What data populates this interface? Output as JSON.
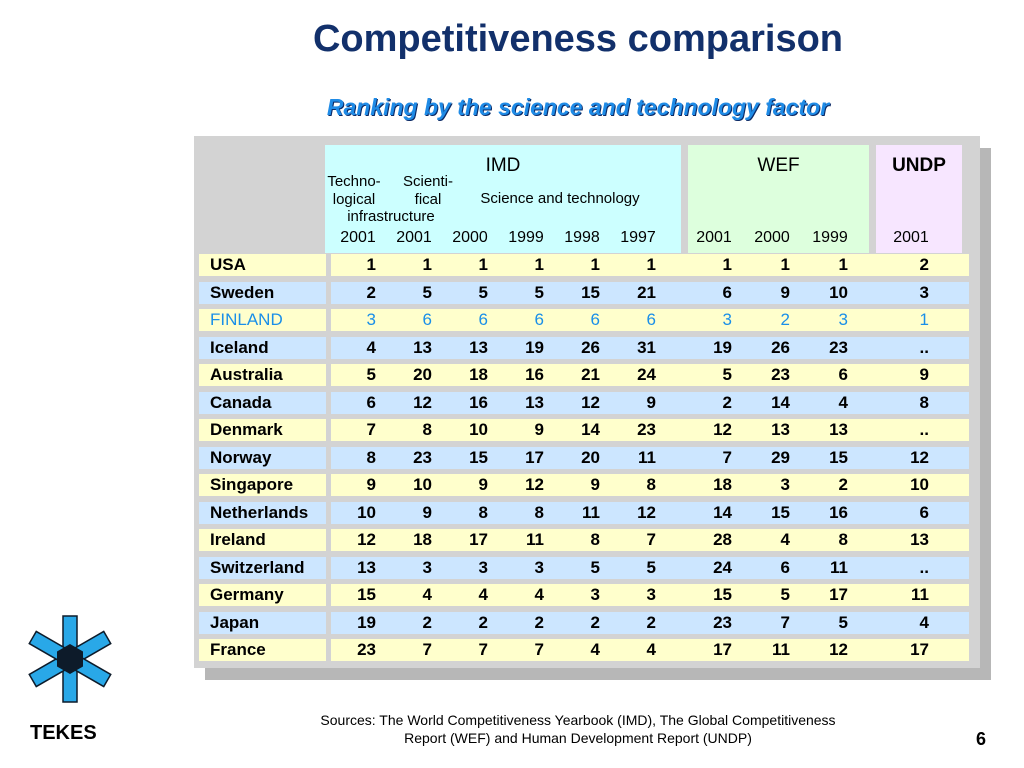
{
  "title": "Competitiveness comparison",
  "subtitle": "Ranking by the science and technology factor",
  "groups": {
    "imd": "IMD",
    "wef": "WEF",
    "undp": "UNDP"
  },
  "subheaders": {
    "techno": "Techno-\nlogical",
    "scienti": "Scienti-\nfical",
    "infra": "infrastructure",
    "scitech": "Science and technology"
  },
  "years": [
    "2001",
    "2001",
    "2000",
    "1999",
    "1998",
    "1997",
    "2001",
    "2000",
    "1999",
    "2001"
  ],
  "rows": [
    {
      "name": "USA",
      "values": [
        "1",
        "1",
        "1",
        "1",
        "1",
        "1",
        "1",
        "1",
        "1",
        "2"
      ]
    },
    {
      "name": "Sweden",
      "values": [
        "2",
        "5",
        "5",
        "5",
        "15",
        "21",
        "6",
        "9",
        "10",
        "3"
      ]
    },
    {
      "name": "FINLAND",
      "values": [
        "3",
        "6",
        "6",
        "6",
        "6",
        "6",
        "3",
        "2",
        "3",
        "1"
      ],
      "highlight": true
    },
    {
      "name": "Iceland",
      "values": [
        "4",
        "13",
        "13",
        "19",
        "26",
        "31",
        "19",
        "26",
        "23",
        ".."
      ]
    },
    {
      "name": "Australia",
      "values": [
        "5",
        "20",
        "18",
        "16",
        "21",
        "24",
        "5",
        "23",
        "6",
        "9"
      ]
    },
    {
      "name": "Canada",
      "values": [
        "6",
        "12",
        "16",
        "13",
        "12",
        "9",
        "2",
        "14",
        "4",
        "8"
      ]
    },
    {
      "name": "Denmark",
      "values": [
        "7",
        "8",
        "10",
        "9",
        "14",
        "23",
        "12",
        "13",
        "13",
        ".."
      ]
    },
    {
      "name": "Norway",
      "values": [
        "8",
        "23",
        "15",
        "17",
        "20",
        "11",
        "7",
        "29",
        "15",
        "12"
      ]
    },
    {
      "name": "Singapore",
      "values": [
        "9",
        "10",
        "9",
        "12",
        "9",
        "8",
        "18",
        "3",
        "2",
        "10"
      ]
    },
    {
      "name": "Netherlands",
      "values": [
        "10",
        "9",
        "8",
        "8",
        "11",
        "12",
        "14",
        "15",
        "16",
        "6"
      ]
    },
    {
      "name": "Ireland",
      "values": [
        "12",
        "18",
        "17",
        "11",
        "8",
        "7",
        "28",
        "4",
        "8",
        "13"
      ]
    },
    {
      "name": "Switzerland",
      "values": [
        "13",
        "3",
        "3",
        "3",
        "5",
        "5",
        "24",
        "6",
        "11",
        ".."
      ]
    },
    {
      "name": "Germany",
      "values": [
        "15",
        "4",
        "4",
        "4",
        "3",
        "3",
        "15",
        "5",
        "17",
        "11"
      ]
    },
    {
      "name": "Japan",
      "values": [
        "19",
        "2",
        "2",
        "2",
        "2",
        "2",
        "23",
        "7",
        "5",
        "4"
      ]
    },
    {
      "name": "France",
      "values": [
        "23",
        "7",
        "7",
        "7",
        "4",
        "4",
        "17",
        "11",
        "12",
        "17"
      ]
    }
  ],
  "colors": {
    "title": "#12306b",
    "subtitle": "#1f8be6",
    "highlight": "#1a8fe8",
    "logo": "#29a8e8",
    "row_yellow": "#ffffcc",
    "row_blue": "#cce6ff"
  },
  "logo_icon": "tekes-snowflake-icon",
  "brand": "TEKES",
  "sources": "Sources: The World Competitiveness Yearbook (IMD), The Global Competitiveness Report (WEF) and Human Development Report (UNDP)",
  "page_number": "6"
}
